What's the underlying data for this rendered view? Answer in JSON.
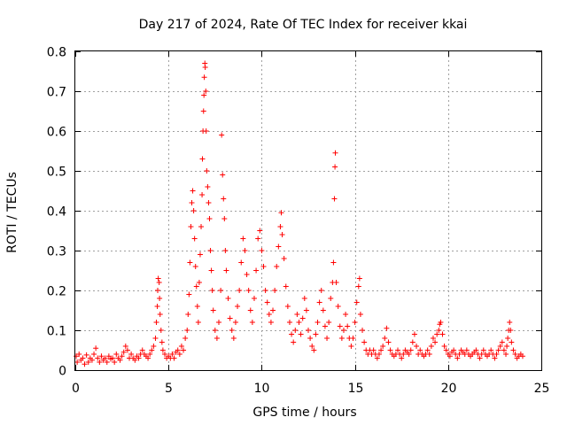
{
  "chart_data": {
    "type": "scatter",
    "title": "Day 217 of 2024, Rate Of TEC Index for receiver kkai",
    "xlabel": "GPS time / hours",
    "ylabel": "ROTI / TECUs",
    "xlim": [
      0,
      25
    ],
    "ylim": [
      0,
      0.8
    ],
    "xticks": [
      0,
      5,
      10,
      15,
      20,
      25
    ],
    "yticks": [
      0,
      0.1,
      0.2,
      0.3,
      0.4,
      0.5,
      0.6,
      0.7,
      0.8
    ],
    "xtick_labels": [
      "0",
      "5",
      "10",
      "15",
      "20",
      "25"
    ],
    "ytick_labels": [
      "0",
      "0.1",
      "0.2",
      "0.3",
      "0.4",
      "0.5",
      "0.6",
      "0.7",
      "0.8"
    ],
    "grid": true,
    "marker": "plus",
    "series": [
      {
        "name": "ROTI",
        "color": "#ff0000",
        "points": [
          [
            0.05,
            0.035
          ],
          [
            0.1,
            0.02
          ],
          [
            0.2,
            0.04
          ],
          [
            0.3,
            0.025
          ],
          [
            0.4,
            0.03
          ],
          [
            0.5,
            0.015
          ],
          [
            0.6,
            0.038
          ],
          [
            0.7,
            0.02
          ],
          [
            0.8,
            0.03
          ],
          [
            0.9,
            0.025
          ],
          [
            1.0,
            0.04
          ],
          [
            1.1,
            0.055
          ],
          [
            1.2,
            0.03
          ],
          [
            1.3,
            0.02
          ],
          [
            1.4,
            0.035
          ],
          [
            1.5,
            0.025
          ],
          [
            1.6,
            0.03
          ],
          [
            1.7,
            0.02
          ],
          [
            1.8,
            0.035
          ],
          [
            1.9,
            0.028
          ],
          [
            2.0,
            0.03
          ],
          [
            2.1,
            0.02
          ],
          [
            2.2,
            0.04
          ],
          [
            2.3,
            0.03
          ],
          [
            2.4,
            0.025
          ],
          [
            2.5,
            0.035
          ],
          [
            2.6,
            0.045
          ],
          [
            2.7,
            0.06
          ],
          [
            2.8,
            0.05
          ],
          [
            2.9,
            0.03
          ],
          [
            3.0,
            0.04
          ],
          [
            3.1,
            0.03
          ],
          [
            3.2,
            0.025
          ],
          [
            3.3,
            0.035
          ],
          [
            3.4,
            0.03
          ],
          [
            3.5,
            0.04
          ],
          [
            3.6,
            0.05
          ],
          [
            3.7,
            0.04
          ],
          [
            3.8,
            0.035
          ],
          [
            3.9,
            0.03
          ],
          [
            4.0,
            0.04
          ],
          [
            4.1,
            0.05
          ],
          [
            4.2,
            0.06
          ],
          [
            4.3,
            0.08
          ],
          [
            4.35,
            0.12
          ],
          [
            4.4,
            0.16
          ],
          [
            4.42,
            0.2
          ],
          [
            4.45,
            0.23
          ],
          [
            4.5,
            0.22
          ],
          [
            4.52,
            0.18
          ],
          [
            4.55,
            0.14
          ],
          [
            4.6,
            0.1
          ],
          [
            4.65,
            0.07
          ],
          [
            4.7,
            0.05
          ],
          [
            4.8,
            0.04
          ],
          [
            4.9,
            0.03
          ],
          [
            5.0,
            0.035
          ],
          [
            5.1,
            0.03
          ],
          [
            5.2,
            0.04
          ],
          [
            5.3,
            0.03
          ],
          [
            5.4,
            0.045
          ],
          [
            5.5,
            0.05
          ],
          [
            5.6,
            0.04
          ],
          [
            5.7,
            0.06
          ],
          [
            5.8,
            0.05
          ],
          [
            5.9,
            0.08
          ],
          [
            6.0,
            0.1
          ],
          [
            6.05,
            0.14
          ],
          [
            6.1,
            0.19
          ],
          [
            6.15,
            0.27
          ],
          [
            6.2,
            0.36
          ],
          [
            6.25,
            0.42
          ],
          [
            6.3,
            0.45
          ],
          [
            6.35,
            0.4
          ],
          [
            6.4,
            0.33
          ],
          [
            6.45,
            0.26
          ],
          [
            6.5,
            0.21
          ],
          [
            6.55,
            0.16
          ],
          [
            6.6,
            0.12
          ],
          [
            6.65,
            0.22
          ],
          [
            6.7,
            0.29
          ],
          [
            6.75,
            0.36
          ],
          [
            6.8,
            0.44
          ],
          [
            6.82,
            0.53
          ],
          [
            6.85,
            0.6
          ],
          [
            6.88,
            0.65
          ],
          [
            6.9,
            0.69
          ],
          [
            6.92,
            0.735
          ],
          [
            6.95,
            0.77
          ],
          [
            6.97,
            0.76
          ],
          [
            7.0,
            0.7
          ],
          [
            7.02,
            0.6
          ],
          [
            7.05,
            0.5
          ],
          [
            7.1,
            0.46
          ],
          [
            7.15,
            0.42
          ],
          [
            7.2,
            0.38
          ],
          [
            7.25,
            0.3
          ],
          [
            7.3,
            0.25
          ],
          [
            7.35,
            0.2
          ],
          [
            7.4,
            0.15
          ],
          [
            7.5,
            0.1
          ],
          [
            7.6,
            0.08
          ],
          [
            7.7,
            0.12
          ],
          [
            7.8,
            0.2
          ],
          [
            7.85,
            0.59
          ],
          [
            7.9,
            0.49
          ],
          [
            7.95,
            0.43
          ],
          [
            8.0,
            0.38
          ],
          [
            8.05,
            0.3
          ],
          [
            8.1,
            0.25
          ],
          [
            8.2,
            0.18
          ],
          [
            8.3,
            0.13
          ],
          [
            8.4,
            0.1
          ],
          [
            8.5,
            0.08
          ],
          [
            8.6,
            0.12
          ],
          [
            8.7,
            0.16
          ],
          [
            8.8,
            0.2
          ],
          [
            8.9,
            0.27
          ],
          [
            9.0,
            0.33
          ],
          [
            9.1,
            0.3
          ],
          [
            9.2,
            0.24
          ],
          [
            9.3,
            0.2
          ],
          [
            9.4,
            0.15
          ],
          [
            9.5,
            0.12
          ],
          [
            9.6,
            0.18
          ],
          [
            9.7,
            0.25
          ],
          [
            9.8,
            0.33
          ],
          [
            9.9,
            0.35
          ],
          [
            10.0,
            0.3
          ],
          [
            10.1,
            0.26
          ],
          [
            10.2,
            0.2
          ],
          [
            10.3,
            0.17
          ],
          [
            10.4,
            0.14
          ],
          [
            10.5,
            0.12
          ],
          [
            10.6,
            0.15
          ],
          [
            10.7,
            0.2
          ],
          [
            10.8,
            0.26
          ],
          [
            10.9,
            0.31
          ],
          [
            11.0,
            0.36
          ],
          [
            11.05,
            0.395
          ],
          [
            11.1,
            0.34
          ],
          [
            11.2,
            0.28
          ],
          [
            11.3,
            0.21
          ],
          [
            11.4,
            0.16
          ],
          [
            11.5,
            0.12
          ],
          [
            11.6,
            0.09
          ],
          [
            11.7,
            0.07
          ],
          [
            11.8,
            0.1
          ],
          [
            11.9,
            0.14
          ],
          [
            12.0,
            0.12
          ],
          [
            12.1,
            0.09
          ],
          [
            12.2,
            0.13
          ],
          [
            12.3,
            0.18
          ],
          [
            12.4,
            0.15
          ],
          [
            12.5,
            0.1
          ],
          [
            12.6,
            0.08
          ],
          [
            12.7,
            0.06
          ],
          [
            12.8,
            0.05
          ],
          [
            12.9,
            0.09
          ],
          [
            13.0,
            0.12
          ],
          [
            13.1,
            0.17
          ],
          [
            13.2,
            0.2
          ],
          [
            13.3,
            0.15
          ],
          [
            13.4,
            0.11
          ],
          [
            13.5,
            0.08
          ],
          [
            13.6,
            0.12
          ],
          [
            13.7,
            0.18
          ],
          [
            13.8,
            0.22
          ],
          [
            13.85,
            0.27
          ],
          [
            13.9,
            0.43
          ],
          [
            13.93,
            0.51
          ],
          [
            13.95,
            0.545
          ],
          [
            14.0,
            0.22
          ],
          [
            14.1,
            0.16
          ],
          [
            14.2,
            0.11
          ],
          [
            14.3,
            0.08
          ],
          [
            14.4,
            0.1
          ],
          [
            14.5,
            0.14
          ],
          [
            14.6,
            0.11
          ],
          [
            14.7,
            0.08
          ],
          [
            14.8,
            0.06
          ],
          [
            14.9,
            0.08
          ],
          [
            15.0,
            0.12
          ],
          [
            15.1,
            0.17
          ],
          [
            15.2,
            0.21
          ],
          [
            15.25,
            0.23
          ],
          [
            15.3,
            0.14
          ],
          [
            15.4,
            0.1
          ],
          [
            15.5,
            0.07
          ],
          [
            15.6,
            0.05
          ],
          [
            15.7,
            0.04
          ],
          [
            15.8,
            0.05
          ],
          [
            15.9,
            0.04
          ],
          [
            16.0,
            0.05
          ],
          [
            16.1,
            0.04
          ],
          [
            16.2,
            0.03
          ],
          [
            16.3,
            0.04
          ],
          [
            16.4,
            0.05
          ],
          [
            16.5,
            0.06
          ],
          [
            16.6,
            0.08
          ],
          [
            16.7,
            0.105
          ],
          [
            16.8,
            0.07
          ],
          [
            16.9,
            0.05
          ],
          [
            17.0,
            0.04
          ],
          [
            17.1,
            0.035
          ],
          [
            17.2,
            0.04
          ],
          [
            17.3,
            0.05
          ],
          [
            17.4,
            0.04
          ],
          [
            17.5,
            0.03
          ],
          [
            17.6,
            0.04
          ],
          [
            17.7,
            0.05
          ],
          [
            17.8,
            0.045
          ],
          [
            17.9,
            0.04
          ],
          [
            18.0,
            0.05
          ],
          [
            18.1,
            0.07
          ],
          [
            18.2,
            0.09
          ],
          [
            18.3,
            0.06
          ],
          [
            18.4,
            0.04
          ],
          [
            18.5,
            0.05
          ],
          [
            18.6,
            0.04
          ],
          [
            18.7,
            0.035
          ],
          [
            18.8,
            0.04
          ],
          [
            18.9,
            0.05
          ],
          [
            19.0,
            0.04
          ],
          [
            19.1,
            0.06
          ],
          [
            19.2,
            0.08
          ],
          [
            19.3,
            0.07
          ],
          [
            19.4,
            0.09
          ],
          [
            19.5,
            0.1
          ],
          [
            19.55,
            0.115
          ],
          [
            19.6,
            0.12
          ],
          [
            19.7,
            0.09
          ],
          [
            19.8,
            0.06
          ],
          [
            19.9,
            0.05
          ],
          [
            20.0,
            0.04
          ],
          [
            20.1,
            0.035
          ],
          [
            20.2,
            0.045
          ],
          [
            20.3,
            0.05
          ],
          [
            20.4,
            0.04
          ],
          [
            20.5,
            0.03
          ],
          [
            20.6,
            0.04
          ],
          [
            20.7,
            0.05
          ],
          [
            20.8,
            0.045
          ],
          [
            20.9,
            0.04
          ],
          [
            21.0,
            0.05
          ],
          [
            21.1,
            0.04
          ],
          [
            21.2,
            0.035
          ],
          [
            21.3,
            0.04
          ],
          [
            21.4,
            0.045
          ],
          [
            21.5,
            0.05
          ],
          [
            21.6,
            0.04
          ],
          [
            21.7,
            0.03
          ],
          [
            21.8,
            0.04
          ],
          [
            21.9,
            0.05
          ],
          [
            22.0,
            0.04
          ],
          [
            22.1,
            0.035
          ],
          [
            22.2,
            0.04
          ],
          [
            22.3,
            0.05
          ],
          [
            22.4,
            0.04
          ],
          [
            22.5,
            0.03
          ],
          [
            22.6,
            0.04
          ],
          [
            22.7,
            0.05
          ],
          [
            22.8,
            0.06
          ],
          [
            22.9,
            0.07
          ],
          [
            23.0,
            0.05
          ],
          [
            23.1,
            0.04
          ],
          [
            23.15,
            0.06
          ],
          [
            23.2,
            0.08
          ],
          [
            23.25,
            0.1
          ],
          [
            23.3,
            0.12
          ],
          [
            23.35,
            0.1
          ],
          [
            23.4,
            0.07
          ],
          [
            23.5,
            0.05
          ],
          [
            23.6,
            0.04
          ],
          [
            23.7,
            0.03
          ],
          [
            23.8,
            0.035
          ],
          [
            23.9,
            0.04
          ],
          [
            24.0,
            0.035
          ]
        ]
      }
    ]
  }
}
